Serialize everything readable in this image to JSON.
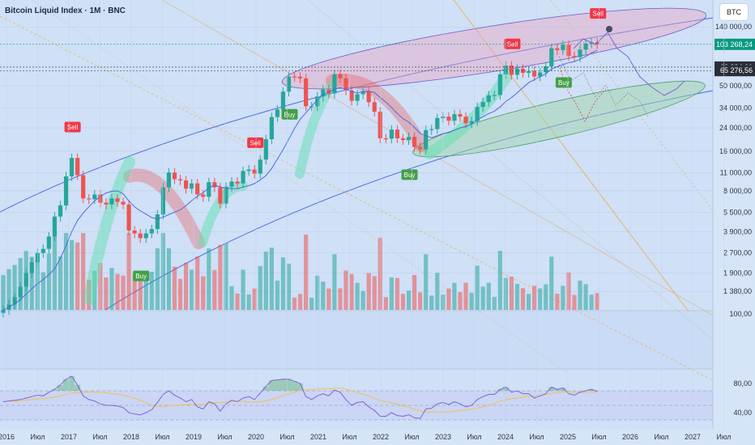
{
  "header": {
    "title": "Bitcoin Liquid Index · 1M · BNC",
    "symbol_badge": "BTC"
  },
  "colors": {
    "up": "#26a69a",
    "down": "#ef5350",
    "sell": "#f23645",
    "buy": "#43a047",
    "ellipse_top": "#e8a3c0",
    "ellipse_bottom": "#9fd3a9",
    "rsi": "#7b66d8",
    "rsi_ma": "#f2c14e",
    "channel": "#4b6bdf"
  },
  "chart_data": [
    {
      "type": "candlestick",
      "title": "Bitcoin Liquid Index · 1M · BNC",
      "y_scale": "log",
      "ylim": [
        1000,
        200000
      ],
      "y_ticks": [
        {
          "v": 140000,
          "label": "140 000,00"
        },
        {
          "v": 50000,
          "label": "50 000,00"
        },
        {
          "v": 34000,
          "label": "34 000,00"
        },
        {
          "v": 24000,
          "label": "24 000,00"
        },
        {
          "v": 16000,
          "label": "16 000,00"
        },
        {
          "v": 11000,
          "label": "11 000,00"
        },
        {
          "v": 8000,
          "label": "8 000,00"
        },
        {
          "v": 5500,
          "label": "5 500,00"
        },
        {
          "v": 3900,
          "label": "3 900,00"
        },
        {
          "v": 2700,
          "label": "2 700,00"
        },
        {
          "v": 1900,
          "label": "1 900,00"
        },
        {
          "v": 1380,
          "label": "1 380,00"
        }
      ],
      "price_labels": [
        {
          "v": 103268.24,
          "label": "103 268,24",
          "color": "#089981"
        },
        {
          "v": 69384.61,
          "label": "69 384,61",
          "color": "#2a2e39"
        },
        {
          "v": 65276.56,
          "label": "65 276,56",
          "color": "#2a2e39"
        }
      ],
      "x_ticks": [
        "2016",
        "Июл",
        "2017",
        "Июл",
        "2018",
        "Июл",
        "2019",
        "Июл",
        "2020",
        "Июл",
        "2021",
        "Июл",
        "2022",
        "Июл",
        "2023",
        "Июл",
        "2024",
        "Июл",
        "2025",
        "Июл",
        "2026",
        "Июл",
        "2027",
        "Июл"
      ],
      "closes": [
        1000,
        1100,
        1250,
        1500,
        1900,
        2300,
        2700,
        2900,
        3600,
        5100,
        6200,
        10300,
        14200,
        10500,
        7000,
        6900,
        7500,
        6500,
        6300,
        7000,
        6600,
        6300,
        4000,
        3800,
        3500,
        3800,
        4100,
        5300,
        8500,
        11000,
        9800,
        9600,
        8300,
        9100,
        7500,
        7200,
        9300,
        8500,
        6400,
        8600,
        9400,
        9100,
        11300,
        11600,
        10800,
        13800,
        19700,
        29000,
        33100,
        45200,
        58800,
        58700,
        57000,
        35000,
        35000,
        41500,
        47000,
        43800,
        61300,
        57000,
        46200,
        38500,
        43200,
        45500,
        37600,
        31800,
        20000,
        19900,
        23300,
        20000,
        19400,
        20500,
        17200,
        16500,
        23100,
        23500,
        28500,
        29200,
        27200,
        30500,
        29200,
        26000,
        27000,
        34600,
        37700,
        42300,
        42600,
        61200,
        71300,
        60600,
        67500,
        62700,
        64600,
        58900,
        63300,
        70200,
        96400,
        93400,
        102400,
        84300,
        82500,
        94200,
        104600,
        107100,
        103300
      ],
      "signals": [
        {
          "type": "Sell",
          "idx": 12
        },
        {
          "type": "Buy",
          "idx": 24
        },
        {
          "type": "Sell",
          "idx": 44
        },
        {
          "type": "Buy",
          "idx": 50
        },
        {
          "type": "Sell",
          "idx": 89
        },
        {
          "type": "Buy",
          "idx": 71
        },
        {
          "type": "Buy",
          "idx": 98
        },
        {
          "type": "Sell",
          "idx": 104
        }
      ]
    },
    {
      "type": "line",
      "title": "RSI",
      "ylim": [
        20,
        100
      ],
      "y_ticks": [
        {
          "v": 80,
          "label": "80,00"
        },
        {
          "v": 40,
          "label": "40,00"
        }
      ],
      "upper_band_label": "100,00",
      "rsi": [
        55,
        56,
        57,
        58,
        60,
        62,
        64,
        63,
        68,
        72,
        78,
        86,
        90,
        78,
        63,
        58,
        56,
        52,
        50,
        50,
        49,
        47,
        40,
        38,
        37,
        40,
        44,
        54,
        65,
        70,
        64,
        60,
        55,
        58,
        48,
        45,
        55,
        52,
        42,
        52,
        57,
        55,
        60,
        62,
        58,
        67,
        76,
        84,
        85,
        86,
        86,
        83,
        80,
        62,
        58,
        63,
        66,
        63,
        71,
        68,
        58,
        50,
        54,
        55,
        48,
        43,
        35,
        35,
        40,
        36,
        35,
        37,
        33,
        32,
        45,
        46,
        52,
        54,
        51,
        55,
        52,
        48,
        50,
        58,
        62,
        65,
        65,
        72,
        75,
        68,
        70,
        66,
        66,
        60,
        63,
        66,
        75,
        72,
        74,
        66,
        64,
        68,
        70,
        72,
        69
      ],
      "rsi_ma_window": 14
    }
  ]
}
